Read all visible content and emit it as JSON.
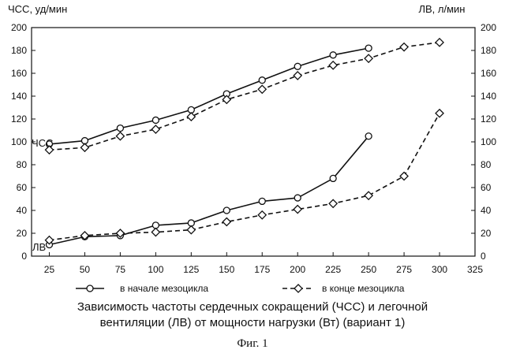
{
  "chart_data": {
    "type": "line",
    "left_axis_title": "ЧСС, уд/мин",
    "right_axis_title": "ЛВ, л/мин",
    "x_ticks": [
      25,
      50,
      75,
      100,
      125,
      150,
      175,
      200,
      225,
      250,
      275,
      300,
      325
    ],
    "xlim": [
      12.5,
      325
    ],
    "ylim": [
      0,
      200
    ],
    "y_ticks": [
      0,
      20,
      40,
      60,
      80,
      100,
      120,
      140,
      160,
      180,
      200
    ],
    "grid": false,
    "legend_position": "bottom",
    "series_labels": {
      "hr": "ЧСС",
      "lv": "ЛВ"
    },
    "series": [
      {
        "name": "в начале мезоцикла",
        "group": "hr",
        "marker": "circle",
        "dash": "solid",
        "x": [
          25,
          50,
          75,
          100,
          125,
          150,
          175,
          200,
          225,
          250
        ],
        "y": [
          98,
          101,
          112,
          119,
          128,
          142,
          154,
          166,
          176,
          182
        ]
      },
      {
        "name": "в конце мезоцикла",
        "group": "hr",
        "marker": "diamond",
        "dash": "dashed",
        "x": [
          25,
          50,
          75,
          100,
          125,
          150,
          175,
          200,
          225,
          250,
          275,
          300
        ],
        "y": [
          93,
          95,
          105,
          111,
          122,
          137,
          146,
          158,
          167,
          173,
          183,
          187
        ]
      },
      {
        "name": "в начале мезоцикла",
        "group": "lv",
        "marker": "circle",
        "dash": "solid",
        "x": [
          25,
          50,
          75,
          100,
          125,
          150,
          175,
          200,
          225,
          250
        ],
        "y": [
          10,
          17,
          18,
          27,
          29,
          40,
          48,
          51,
          68,
          105
        ]
      },
      {
        "name": "в конце мезоцикла",
        "group": "lv",
        "marker": "diamond",
        "dash": "dashed",
        "x": [
          25,
          50,
          75,
          100,
          125,
          150,
          175,
          200,
          225,
          250,
          275,
          300
        ],
        "y": [
          14,
          18,
          20,
          21,
          23,
          30,
          36,
          41,
          46,
          53,
          70,
          125
        ]
      }
    ]
  },
  "caption": {
    "line1": "Зависимость частоты сердечных сокращений (ЧСС) и легочной",
    "line2": "вентиляции (ЛВ) от мощности нагрузки (Вт) (вариант 1)",
    "fig": "Фиг. 1"
  }
}
